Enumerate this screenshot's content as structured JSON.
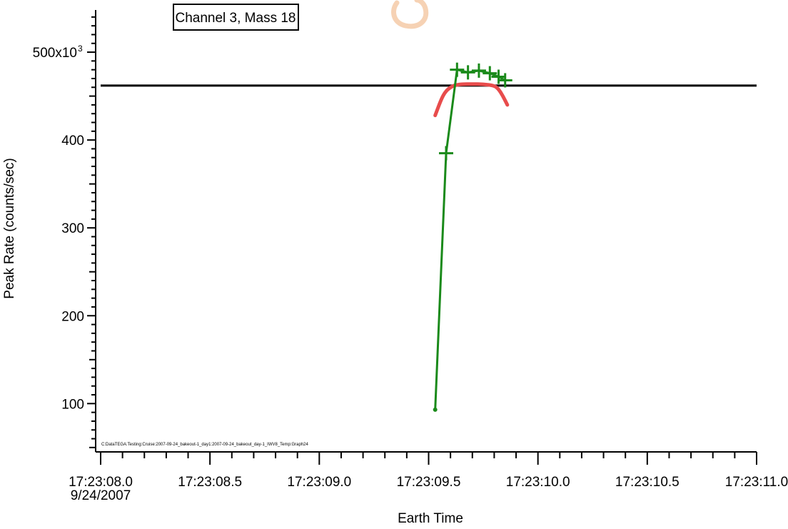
{
  "chart_data": {
    "type": "line",
    "title": "Channel 3, Mass 18",
    "xlabel": "Earth Time",
    "ylabel": "Peak Rate (counts/sec)",
    "x_ticks": [
      "17:23:08.0",
      "17:23:08.5",
      "17:23:09.0",
      "17:23:09.5",
      "17:23:10.0",
      "17:23:10.5",
      "17:23:11.0"
    ],
    "x_date_label": "9/24/2007",
    "x_range_seconds": [
      0,
      3.0
    ],
    "y_ticks": [
      {
        "value": 100000,
        "label": "100"
      },
      {
        "value": 200000,
        "label": "200"
      },
      {
        "value": 300000,
        "label": "300"
      },
      {
        "value": 400000,
        "label": "400"
      },
      {
        "value": 500000,
        "label": "500x10",
        "sup": "3"
      }
    ],
    "ylim": [
      45000,
      548000
    ],
    "footnote": "C:DataTEGA:Testing:Cruise:2007-09-24_bakeout-1_day1:2007-09-24_bakeout_day-1_IWV8_Temp:Graph24",
    "series": [
      {
        "color": "#000000",
        "style": "line",
        "x": [
          0.0,
          3.0
        ],
        "y": [
          462000,
          462000
        ]
      },
      {
        "color": "#e84c4c",
        "style": "curve",
        "x": [
          1.53,
          1.56,
          1.58,
          1.6,
          1.62,
          1.65,
          1.7,
          1.75,
          1.8,
          1.82,
          1.84,
          1.86
        ],
        "y": [
          428000,
          448000,
          456000,
          460000,
          462500,
          463500,
          463800,
          463500,
          462000,
          458000,
          450000,
          440000
        ]
      },
      {
        "color": "#1a8a1a",
        "style": "line-markers",
        "x": [
          1.53,
          1.58,
          1.63,
          1.68,
          1.73,
          1.78,
          1.82,
          1.85
        ],
        "y": [
          93000,
          385000,
          480000,
          477000,
          479000,
          476000,
          472000,
          468000
        ]
      }
    ]
  }
}
